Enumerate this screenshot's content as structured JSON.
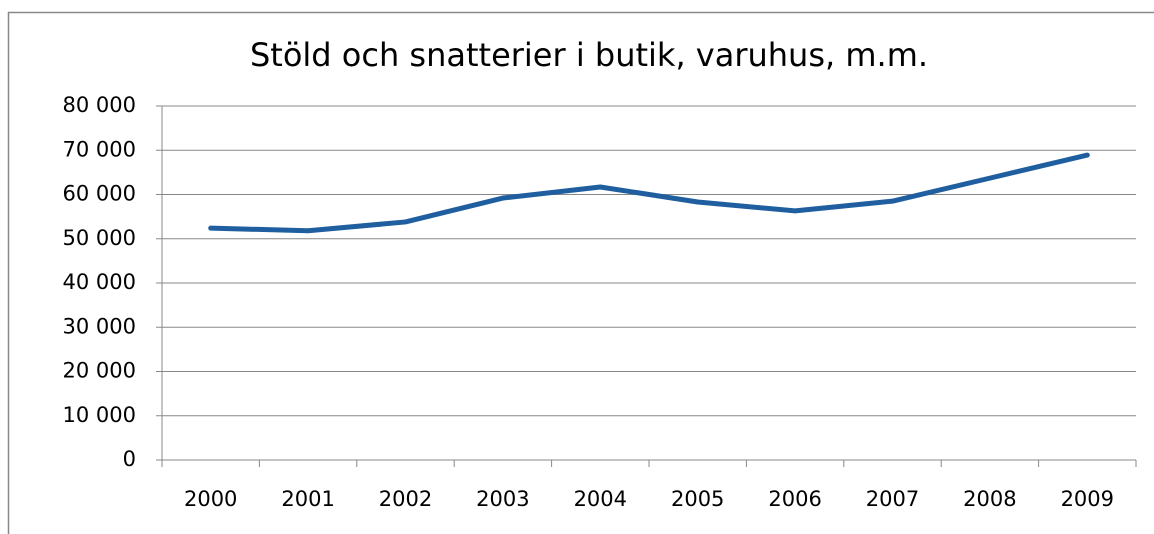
{
  "chart_data": {
    "type": "line",
    "title": "Stöld och snatterier i butik, varuhus, m.m.",
    "categories": [
      "2000",
      "2001",
      "2002",
      "2003",
      "2004",
      "2005",
      "2006",
      "2007",
      "2008",
      "2009"
    ],
    "series": [
      {
        "name": "Stöld och snatterier i butik, varuhus, m.m.",
        "color": "#1f5f9f",
        "values": [
          52400,
          51800,
          53800,
          59200,
          61700,
          58300,
          56300,
          58500,
          63700,
          68900
        ]
      }
    ],
    "ylim": [
      0,
      80000
    ],
    "yticks": [
      0,
      {
        "value": 10000,
        "label": "10 000"
      },
      {
        "value": 20000,
        "label": "20 000"
      },
      {
        "value": 30000,
        "label": "30 000"
      },
      {
        "value": 40000,
        "label": "40 000"
      },
      {
        "value": 50000,
        "label": "50 000"
      },
      {
        "value": 60000,
        "label": "60 000"
      },
      {
        "value": 70000,
        "label": "70 000"
      },
      {
        "value": 80000,
        "label": "80 000"
      }
    ],
    "grid": true
  }
}
